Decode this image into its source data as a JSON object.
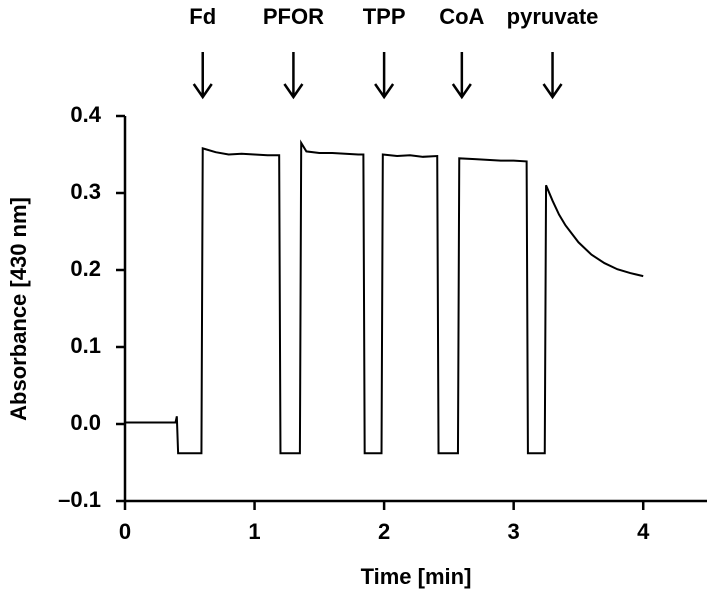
{
  "chart_data": {
    "type": "line",
    "x_label": "Time [min]",
    "y_label": "Absorbance [430 nm]",
    "xlim": [
      0,
      4.5
    ],
    "xticks": [
      0,
      1,
      2,
      3,
      4
    ],
    "ylim": [
      -0.1,
      0.4
    ],
    "yticks": [
      {
        "value": -0.1,
        "label": "–0.1"
      },
      {
        "value": 0,
        "label": "0.0"
      },
      0.1,
      0.2,
      0.3,
      0.4
    ],
    "annotations": [
      {
        "text": "Fd",
        "x": 0.6
      },
      {
        "text": "PFOR",
        "x": 1.3
      },
      {
        "text": "TPP",
        "x": 2.0
      },
      {
        "text": "CoA",
        "x": 2.6
      },
      {
        "text": "pyruvate",
        "x": 3.3
      }
    ],
    "series": [
      {
        "color": "#000000",
        "x": [
          0,
          0.2,
          0.39,
          0.4,
          0.41,
          0.5,
          0.59,
          0.6,
          0.62,
          0.7,
          0.8,
          0.9,
          1.0,
          1.1,
          1.19,
          1.2,
          1.35,
          1.36,
          1.4,
          1.5,
          1.6,
          1.7,
          1.8,
          1.84,
          1.85,
          1.98,
          1.99,
          2.1,
          2.2,
          2.3,
          2.41,
          2.42,
          2.57,
          2.58,
          2.7,
          2.8,
          2.9,
          3.0,
          3.1,
          3.11,
          3.24,
          3.25,
          3.3,
          3.35,
          3.4,
          3.5,
          3.6,
          3.7,
          3.8,
          3.9,
          4.0
        ],
        "values": [
          0.002,
          0.002,
          0.002,
          0.01,
          -0.038,
          -0.038,
          -0.038,
          0.358,
          0.357,
          0.353,
          0.35,
          0.351,
          0.35,
          0.349,
          0.349,
          -0.038,
          -0.038,
          0.365,
          0.354,
          0.352,
          0.352,
          0.351,
          0.35,
          0.35,
          -0.038,
          -0.038,
          0.35,
          0.348,
          0.349,
          0.347,
          0.348,
          -0.038,
          -0.038,
          0.345,
          0.344,
          0.343,
          0.342,
          0.342,
          0.341,
          -0.038,
          -0.038,
          0.31,
          0.29,
          0.272,
          0.258,
          0.236,
          0.22,
          0.209,
          0.201,
          0.196,
          0.192
        ]
      }
    ]
  }
}
